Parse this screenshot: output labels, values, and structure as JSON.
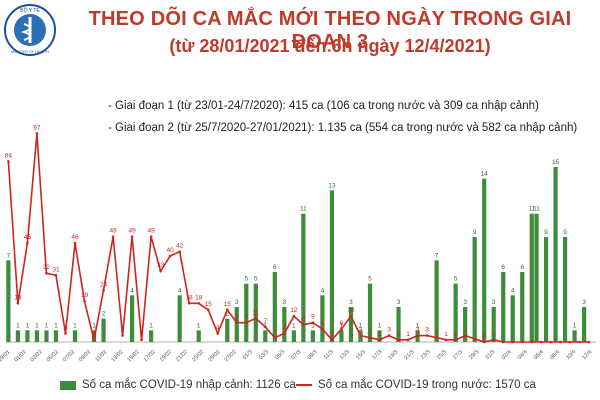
{
  "header": {
    "logo": {
      "text_top": "BỘ Y TẾ",
      "text_bottom": "MINISTRY OF HEALTH",
      "colors": {
        "ring": "#1f4e99",
        "emblem": "#2a6fb8"
      }
    },
    "title": "THEO DÕI CA MẮC MỚI THEO NGÀY TRONG GIAI ĐOẠN 3",
    "subtitle": "(từ 28/01/2021 đến 6h ngày 12/4/2021)"
  },
  "notes": [
    "- Giai đoạn 1 (từ 23/01-24/7/2020): 415 ca (106 ca trong nước và 309 ca nhập cảnh)",
    "- Giai đoạn 2 (từ 25/7/2020-27/01/2021): 1.135 ca (554 ca trong nước và 582 ca nhập cảnh)"
  ],
  "legend": {
    "bars": "Số ca mắc COVID-19 nhập cảnh: 1126 ca",
    "line": "Số ca mắc COVID-19 trong nước: 1570 ca"
  },
  "colors": {
    "title": "#c0392b",
    "bars": "#3c8c3c",
    "line": "#d2231e",
    "bar_labels": "#2e6b2e",
    "line_labels": "#d2231e"
  },
  "chart_data": {
    "type": "bar",
    "x_tick_labels": [
      "29/01",
      "01/02",
      "03/02",
      "05/02",
      "07/02",
      "09/02",
      "11/02",
      "13/02",
      "15/02",
      "17/02",
      "19/02",
      "21/02",
      "23/02",
      "25/02",
      "27/02",
      "01/3",
      "03/3",
      "05/3",
      "07/3",
      "09/3",
      "11/3",
      "13/3",
      "15/3",
      "17/3",
      "19/3",
      "21/3",
      "23/3",
      "25/3",
      "27/3",
      "29/3",
      "31/3",
      "02/4",
      "04/4",
      "06/4",
      "08/4",
      "10/4",
      "12/4"
    ],
    "y_axis": {
      "visible": false,
      "ylim": [
        0,
        100
      ]
    },
    "grid": false,
    "series": [
      {
        "name": "Số ca mắc COVID-19 nhập cảnh: 1126 ca",
        "kind": "bar",
        "points": [
          {
            "i": 0,
            "v": 7,
            "label": "7"
          },
          {
            "i": 2,
            "v": 1,
            "label": "1"
          },
          {
            "i": 4,
            "v": 1,
            "label": "1"
          },
          {
            "i": 6,
            "v": 1,
            "label": "1"
          },
          {
            "i": 8,
            "v": 1,
            "label": "1"
          },
          {
            "i": 10,
            "v": 1,
            "label": "1"
          },
          {
            "i": 14,
            "v": 1,
            "label": "1"
          },
          {
            "i": 18,
            "v": 1,
            "label": "1"
          },
          {
            "i": 20,
            "v": 2,
            "label": "2"
          },
          {
            "i": 26,
            "v": 4,
            "label": "4"
          },
          {
            "i": 30,
            "v": 1,
            "label": "1"
          },
          {
            "i": 36,
            "v": 4,
            "label": "4"
          },
          {
            "i": 40,
            "v": 1,
            "label": "1"
          },
          {
            "i": 46,
            "v": 2,
            "label": "2"
          },
          {
            "i": 48,
            "v": 3,
            "label": "3"
          },
          {
            "i": 50,
            "v": 5,
            "label": "5"
          },
          {
            "i": 52,
            "v": 5,
            "label": "5"
          },
          {
            "i": 54,
            "v": 1,
            "label": "1"
          },
          {
            "i": 56,
            "v": 6,
            "label": "6"
          },
          {
            "i": 58,
            "v": 3,
            "label": "3"
          },
          {
            "i": 60,
            "v": 1,
            "label": "1"
          },
          {
            "i": 62,
            "v": 11,
            "label": "11"
          },
          {
            "i": 64,
            "v": 1,
            "label": "1"
          },
          {
            "i": 66,
            "v": 4,
            "label": "4"
          },
          {
            "i": 68,
            "v": 13,
            "label": "13"
          },
          {
            "i": 70,
            "v": 1,
            "label": "1"
          },
          {
            "i": 72,
            "v": 3,
            "label": "3"
          },
          {
            "i": 74,
            "v": 1,
            "label": "1"
          },
          {
            "i": 76,
            "v": 5,
            "label": "5"
          },
          {
            "i": 78,
            "v": 1,
            "label": "1"
          },
          {
            "i": 82,
            "v": 3,
            "label": "3"
          },
          {
            "i": 86,
            "v": 1,
            "label": "1"
          },
          {
            "i": 90,
            "v": 7,
            "label": "7"
          },
          {
            "i": 94,
            "v": 5,
            "label": "5"
          },
          {
            "i": 96,
            "v": 3,
            "label": "3"
          },
          {
            "i": 98,
            "v": 9,
            "label": "9"
          },
          {
            "i": 100,
            "v": 14,
            "label": "14"
          },
          {
            "i": 102,
            "v": 3,
            "label": "3"
          },
          {
            "i": 104,
            "v": 6,
            "label": "6"
          },
          {
            "i": 106,
            "v": 4,
            "label": "4"
          },
          {
            "i": 108,
            "v": 6,
            "label": "6"
          },
          {
            "i": 110,
            "v": 11,
            "label": "11"
          },
          {
            "i": 111,
            "v": 11,
            "label": "11"
          },
          {
            "i": 113,
            "v": 9,
            "label": "9"
          },
          {
            "i": 115,
            "v": 15,
            "label": "15"
          },
          {
            "i": 117,
            "v": 9,
            "label": "9"
          },
          {
            "i": 119,
            "v": 1,
            "label": "1"
          },
          {
            "i": 121,
            "v": 3,
            "label": "3"
          }
        ]
      },
      {
        "name": "Số ca mắc COVID-19 trong nước: 1570 ca",
        "kind": "line",
        "points": [
          {
            "i": 0,
            "v": 84,
            "label": "84"
          },
          {
            "i": 2,
            "v": 18,
            "label": "18"
          },
          {
            "i": 4,
            "v": 46,
            "label": "46"
          },
          {
            "i": 6,
            "v": 97,
            "label": "97"
          },
          {
            "i": 8,
            "v": 32,
            "label": "32"
          },
          {
            "i": 10,
            "v": 31,
            "label": "31"
          },
          {
            "i": 12,
            "v": 4,
            "label": "4"
          },
          {
            "i": 14,
            "v": 46,
            "label": "46"
          },
          {
            "i": 16,
            "v": 19,
            "label": "19"
          },
          {
            "i": 18,
            "v": 1,
            "label": "1"
          },
          {
            "i": 20,
            "v": 24,
            "label": "24"
          },
          {
            "i": 22,
            "v": 49,
            "label": "49"
          },
          {
            "i": 24,
            "v": 3,
            "label": "3"
          },
          {
            "i": 26,
            "v": 49,
            "label": "49"
          },
          {
            "i": 28,
            "v": 1,
            "label": "1"
          },
          {
            "i": 30,
            "v": 49,
            "label": "49"
          },
          {
            "i": 32,
            "v": 33,
            "label": "33"
          },
          {
            "i": 34,
            "v": 40,
            "label": "40"
          },
          {
            "i": 36,
            "v": 42,
            "label": "42"
          },
          {
            "i": 38,
            "v": 18,
            "label": "18"
          },
          {
            "i": 40,
            "v": 18,
            "label": "18"
          },
          {
            "i": 42,
            "v": 15,
            "label": "15"
          },
          {
            "i": 44,
            "v": 4,
            "label": "4"
          },
          {
            "i": 46,
            "v": 15,
            "label": "15"
          },
          {
            "i": 48,
            "v": 9,
            "label": "9"
          },
          {
            "i": 50,
            "v": 9,
            "label": "9"
          },
          {
            "i": 52,
            "v": 11,
            "label": "11"
          },
          {
            "i": 54,
            "v": 7,
            "label": "7"
          },
          {
            "i": 56,
            "v": 2,
            "label": "2"
          },
          {
            "i": 58,
            "v": 4,
            "label": "4"
          },
          {
            "i": 60,
            "v": 12,
            "label": "12"
          },
          {
            "i": 62,
            "v": 8,
            "label": "8"
          },
          {
            "i": 64,
            "v": 9,
            "label": "9"
          },
          {
            "i": 66,
            "v": 6,
            "label": "6"
          },
          {
            "i": 68,
            "v": 1,
            "label": "1"
          },
          {
            "i": 70,
            "v": 6,
            "label": "6"
          },
          {
            "i": 72,
            "v": 12,
            "label": "12"
          },
          {
            "i": 74,
            "v": 3,
            "label": "3"
          },
          {
            "i": 76,
            "v": 2,
            "label": "2"
          },
          {
            "i": 78,
            "v": 1,
            "label": "1"
          },
          {
            "i": 80,
            "v": 3,
            "label": "3"
          },
          {
            "i": 82,
            "v": 1,
            "label": "1"
          },
          {
            "i": 84,
            "v": 1,
            "label": "1"
          },
          {
            "i": 86,
            "v": 3,
            "label": "3"
          },
          {
            "i": 88,
            "v": 3,
            "label": "3"
          },
          {
            "i": 90,
            "v": 2,
            "label": "2"
          },
          {
            "i": 92,
            "v": 1,
            "label": "1"
          },
          {
            "i": 94,
            "v": 1,
            "label": "1"
          },
          {
            "i": 96,
            "v": 3,
            "label": "3"
          },
          {
            "i": 100,
            "v": 0,
            "label": "0"
          },
          {
            "i": 102,
            "v": 1,
            "label": "1"
          },
          {
            "i": 104,
            "v": 0,
            "label": ""
          },
          {
            "i": 106,
            "v": 0,
            "label": ""
          },
          {
            "i": 108,
            "v": 0,
            "label": ""
          },
          {
            "i": 110,
            "v": 0,
            "label": ""
          },
          {
            "i": 112,
            "v": 0,
            "label": ""
          },
          {
            "i": 114,
            "v": 0,
            "label": ""
          },
          {
            "i": 116,
            "v": 0,
            "label": ""
          },
          {
            "i": 118,
            "v": 0,
            "label": ""
          },
          {
            "i": 120,
            "v": 0,
            "label": ""
          },
          {
            "i": 122,
            "v": 0,
            "label": ""
          }
        ]
      }
    ]
  }
}
